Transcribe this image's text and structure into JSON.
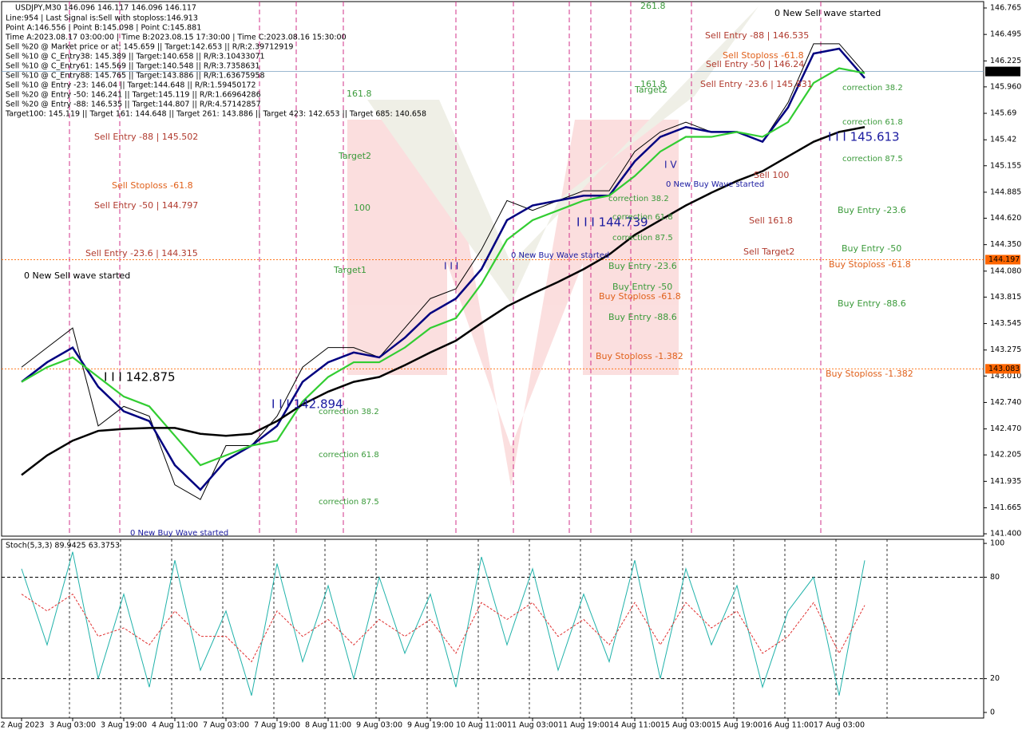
{
  "chart_data": [
    {
      "type": "line",
      "title": "USDJPY,M30  146.096 146.117 146.096 146.117",
      "info_lines": [
        "Line:954 | Last Signal is:Sell with stoploss:146.913",
        "Point A:146.556 | Point B:145.098 | Point C:145.881",
        "Time A:2023.08.17 03:00:00 | Time B:2023.08.15 17:30:00 | Time C:2023.08.16 15:30:00",
        "Sell %20 @ Market price or at: 145.659 || Target:142.653 || R/R:2.39712919",
        "Sell %10 @ C_Entry38: 145.389 || Target:140.658 || R/R:3.10433071",
        "Sell %10 @ C_Entry61: 145.569 || Target:140.548 || R/R:3.7358631",
        "Sell %10 @ C_Entry88: 145.765 || Target:143.886 || R/R:1.63675958",
        "Sell %10 @ Entry -23: 146.04 || Target:144.648 || R/R:1.59450172",
        "Sell %20 @ Entry -50: 146.241 || Target:145.119 || R/R:1.66964286",
        "Sell %20 @ Entry -88: 146.535 || Target:144.807 || R/R:4.57142857",
        "Target100: 145.119 || Target 161: 144.648 || Target 261: 143.886 || Target 423: 142.653 || Target 685: 140.658"
      ],
      "categories": [
        "2 Aug 2023",
        null,
        "3 Aug 03:00",
        null,
        "3 Aug 19:00",
        null,
        "4 Aug 11:00",
        null,
        "7 Aug 03:00",
        null,
        "7 Aug 19:00",
        null,
        "8 Aug 11:00",
        null,
        "9 Aug 03:00",
        null,
        "9 Aug 19:00",
        null,
        "10 Aug 11:00",
        null,
        "11 Aug 03:00",
        null,
        "11 Aug 19:00",
        null,
        "14 Aug 11:00",
        null,
        "15 Aug 03:00",
        null,
        "15 Aug 19:00",
        null,
        "16 Aug 11:00",
        null,
        "17 Aug 03:00",
        null
      ],
      "series": [
        {
          "color": "#000000",
          "values": [
            143.1,
            143.3,
            143.5,
            142.5,
            142.7,
            142.6,
            141.9,
            141.75,
            142.3,
            142.3,
            142.6,
            143.1,
            143.3,
            143.3,
            143.2,
            143.5,
            143.8,
            143.9,
            144.3,
            144.8,
            144.7,
            144.8,
            144.9,
            144.9,
            145.3,
            145.5,
            145.6,
            145.5,
            145.5,
            145.4,
            145.8,
            146.4,
            146.4,
            146.1
          ]
        },
        {
          "color": "#000080",
          "values": [
            142.95,
            143.15,
            143.3,
            142.9,
            142.65,
            142.55,
            142.1,
            141.85,
            142.15,
            142.3,
            142.5,
            142.95,
            143.15,
            143.25,
            143.2,
            143.4,
            143.65,
            143.8,
            144.1,
            144.6,
            144.75,
            144.8,
            144.85,
            144.85,
            145.2,
            145.45,
            145.55,
            145.5,
            145.5,
            145.4,
            145.75,
            146.3,
            146.35,
            146.05
          ]
        },
        {
          "color": "#32cd32",
          "values": [
            142.95,
            143.1,
            143.2,
            143.0,
            142.8,
            142.7,
            142.4,
            142.1,
            142.2,
            142.3,
            142.35,
            142.75,
            143.0,
            143.15,
            143.15,
            143.3,
            143.5,
            143.6,
            143.95,
            144.4,
            144.6,
            144.7,
            144.8,
            144.85,
            145.05,
            145.3,
            145.45,
            145.45,
            145.5,
            145.45,
            145.6,
            146.0,
            146.15,
            146.1
          ]
        },
        {
          "color": "#000000",
          "values": [
            142.0,
            142.2,
            142.35,
            142.45,
            142.47,
            142.48,
            142.48,
            142.42,
            142.4,
            142.42,
            142.55,
            142.72,
            142.85,
            142.95,
            143.0,
            143.12,
            143.25,
            143.37,
            143.55,
            143.72,
            143.85,
            143.97,
            144.1,
            144.25,
            144.45,
            144.6,
            144.75,
            144.88,
            145.0,
            145.1,
            145.25,
            145.4,
            145.5,
            145.55
          ]
        }
      ],
      "ylim": [
        141.376,
        146.83
      ],
      "yticks": [
        146.765,
        146.495,
        146.225,
        {
          "value": 145.96,
          "label": "145.960"
        },
        145.69,
        145.42,
        145.155,
        144.885,
        {
          "value": 144.62,
          "label": "144.620"
        },
        {
          "value": 144.35,
          "label": "144.350"
        },
        {
          "value": 144.08,
          "label": "144.080"
        },
        143.815,
        143.545,
        143.275,
        {
          "value": 143.01,
          "label": "143.010"
        },
        {
          "value": 142.74,
          "label": "142.740"
        },
        {
          "value": 142.47,
          "label": "142.470"
        },
        142.205,
        141.935,
        141.665,
        {
          "value": 141.4,
          "label": "141.400"
        }
      ],
      "price_levels": [
        {
          "value": 146.117,
          "color": "#000000"
        },
        {
          "value": 144.197,
          "color": "#ff6600"
        },
        {
          "value": 143.083,
          "color": "#ff6600"
        }
      ],
      "annotations": [
        {
          "text": "0 New Sell wave started",
          "color": "#000000"
        },
        {
          "text": "I I I 142.875",
          "color": "#000000"
        },
        {
          "text": "Sell Entry -88 | 145.502",
          "color": "#b03a2e"
        },
        {
          "text": "Sell Stoploss -61.8",
          "color": "#e0601a"
        },
        {
          "text": "Sell Entry -50 | 144.797",
          "color": "#b03a2e"
        },
        {
          "text": "Sell Entry -23.6 | 144.315",
          "color": "#b03a2e"
        },
        {
          "text": "161.8",
          "color": "#3a9a3a"
        },
        {
          "text": "Target2",
          "color": "#3a9a3a"
        },
        {
          "text": "100",
          "color": "#3a9a3a"
        },
        {
          "text": "Target1",
          "color": "#3a9a3a"
        },
        {
          "text": "I I I 142.894",
          "color": "#1a1aa0"
        },
        {
          "text": "correction 38.2",
          "color": "#3a9a3a"
        },
        {
          "text": "correction 61.8",
          "color": "#3a9a3a"
        },
        {
          "text": "correction 87.5",
          "color": "#3a9a3a"
        },
        {
          "text": "0 New Buy Wave started",
          "color": "#1a1aa0"
        },
        {
          "text": "I I I",
          "color": "#1a1aa0"
        },
        {
          "text": "0 New Buy Wave started",
          "color": "#1a1aa0"
        },
        {
          "text": "I I I 144.739",
          "color": "#1a1aa0"
        },
        {
          "text": "correction 38.2",
          "color": "#3a9a3a"
        },
        {
          "text": "correction 61.8",
          "color": "#3a9a3a"
        },
        {
          "text": "correction 87.5",
          "color": "#3a9a3a"
        },
        {
          "text": "Buy Entry -23.6",
          "color": "#3a9a3a"
        },
        {
          "text": "Buy Entry -50",
          "color": "#3a9a3a"
        },
        {
          "text": "Buy Stoploss -61.8",
          "color": "#e0601a"
        },
        {
          "text": "Buy Entry -88.6",
          "color": "#3a9a3a"
        },
        {
          "text": "Buy Stoploss -1.382",
          "color": "#e0601a"
        },
        {
          "text": "261.8",
          "color": "#3a9a3a"
        },
        {
          "text": "161.8",
          "color": "#3a9a3a"
        },
        {
          "text": "Target2",
          "color": "#3a9a3a"
        },
        {
          "text": "Sell Entry -88 | 146.535",
          "color": "#b03a2e"
        },
        {
          "text": "Sell Stoploss -61.8",
          "color": "#e0601a"
        },
        {
          "text": "Sell Entry -50 | 146.24",
          "color": "#b03a2e"
        },
        {
          "text": "Sell Entry -23.6 | 145.831",
          "color": "#b03a2e"
        },
        {
          "text": "0 New Buy Wave started",
          "color": "#1a1aa0"
        },
        {
          "text": "I V",
          "color": "#1a1aa0"
        },
        {
          "text": "Sell 100",
          "color": "#b03a2e"
        },
        {
          "text": "Sell 161.8",
          "color": "#b03a2e"
        },
        {
          "text": "Sell Target2",
          "color": "#b03a2e"
        },
        {
          "text": "0 New Sell wave started",
          "color": "#000000"
        },
        {
          "text": "correction 38.2",
          "color": "#3a9a3a"
        },
        {
          "text": "correction 61.8",
          "color": "#3a9a3a"
        },
        {
          "text": "correction 87.5",
          "color": "#3a9a3a"
        },
        {
          "text": "I I I 145.613",
          "color": "#1a1aa0"
        },
        {
          "text": "Buy Entry -23.6",
          "color": "#3a9a3a"
        },
        {
          "text": "Buy Entry -50",
          "color": "#3a9a3a"
        },
        {
          "text": "Buy Stoploss -61.8",
          "color": "#e0601a"
        },
        {
          "text": "Buy Entry -88.6",
          "color": "#3a9a3a"
        },
        {
          "text": "Buy Stoploss -1.382",
          "color": "#e0601a"
        }
      ]
    },
    {
      "type": "line",
      "title": "Stoch(5,3,3) 89.9425 63.3753",
      "series": [
        {
          "color": "#20b2aa",
          "values": [
            85,
            40,
            95,
            20,
            70,
            15,
            90,
            25,
            60,
            10,
            88,
            30,
            75,
            20,
            80,
            35,
            70,
            15,
            92,
            40,
            85,
            25,
            70,
            30,
            90,
            20,
            85,
            40,
            75,
            15,
            60,
            80,
            10,
            89.9425
          ]
        },
        {
          "color": "#e03030",
          "dash": true,
          "values": [
            70,
            60,
            70,
            45,
            50,
            40,
            60,
            45,
            45,
            30,
            60,
            45,
            55,
            40,
            55,
            45,
            55,
            35,
            65,
            55,
            65,
            45,
            55,
            40,
            65,
            40,
            65,
            50,
            60,
            35,
            45,
            65,
            35,
            63.3753
          ]
        }
      ],
      "ylim": [
        -3.3,
        102.4
      ],
      "yticks": [
        0,
        20,
        80,
        100
      ],
      "dashed_levels": [
        20,
        80
      ]
    }
  ]
}
